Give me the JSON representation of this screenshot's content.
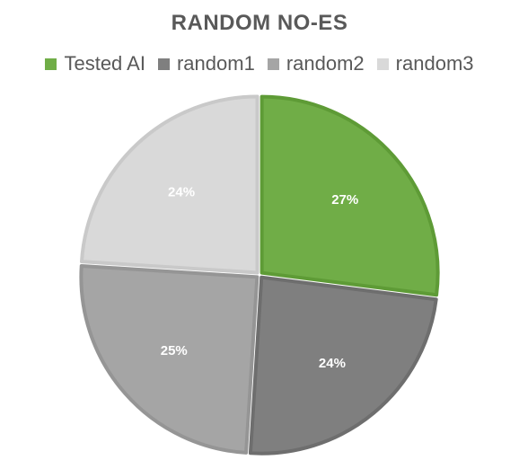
{
  "chart_data": {
    "type": "pie",
    "title": "RANDOM NO-ES",
    "legend_position": "top",
    "categories": [
      "Tested AI",
      "random1",
      "random2",
      "random3"
    ],
    "values": [
      27,
      24,
      25,
      24
    ],
    "labels": [
      "27%",
      "24%",
      "25%",
      "24%"
    ],
    "colors": [
      "#70ad47",
      "#7f7f7f",
      "#a5a5a5",
      "#d9d9d9"
    ],
    "edge_colors": [
      "#5e9b36",
      "#6e6e6e",
      "#959595",
      "#c9c9c9"
    ]
  }
}
